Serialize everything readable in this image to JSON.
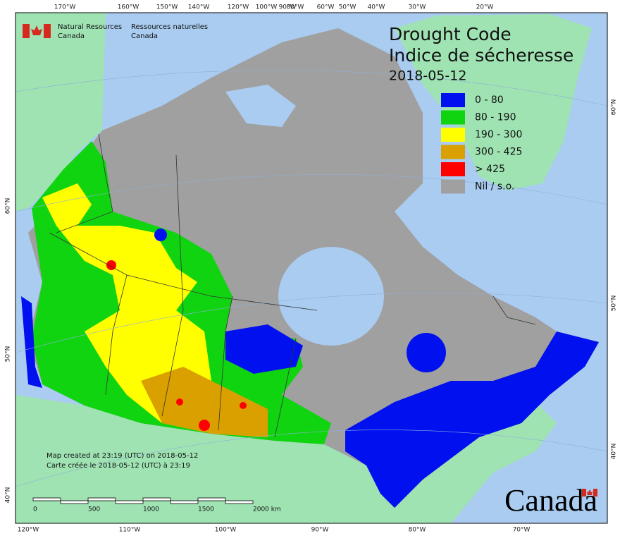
{
  "header": {
    "agency_en": [
      "Natural Resources",
      "Canada"
    ],
    "agency_fr": [
      "Ressources naturelles",
      "Canada"
    ]
  },
  "title": [
    "Drought Code",
    "Indice de sécheresse",
    "2018-05-12"
  ],
  "legend": [
    {
      "label": "0 - 80",
      "color": "#0010ee"
    },
    {
      "label": "80 - 190",
      "color": "#11d411"
    },
    {
      "label": "190 - 300",
      "color": "#ffff00"
    },
    {
      "label": "300 - 425",
      "color": "#d9a000"
    },
    {
      "label": "> 425",
      "color": "#ff0000"
    },
    {
      "label": "Nil / s.o.",
      "color": "#a0a0a0"
    }
  ],
  "footer": [
    "Map created at 23:19 (UTC) on 2018-05-12",
    "Carte créée le 2018-05-12 (UTC) à 23:19"
  ],
  "scale_bar": [
    "0",
    "500",
    "1000",
    "1500",
    "2000 km"
  ],
  "top_longitudes": [
    "170°W",
    "160°W",
    "150°W",
    "140°W",
    "120°W",
    "100°W",
    "90°W",
    "80°W",
    "60°W",
    "50°W",
    "40°W",
    "30°W",
    "20°W"
  ],
  "bottom_longitudes": [
    "120°W",
    "110°W",
    "100°W",
    "90°W",
    "80°W",
    "70°W"
  ],
  "left_latitudes": [
    "60°N",
    "50°N",
    "40°N"
  ],
  "right_latitudes": [
    "60°N",
    "50°N",
    "40°N"
  ],
  "wordmark": "Canada"
}
